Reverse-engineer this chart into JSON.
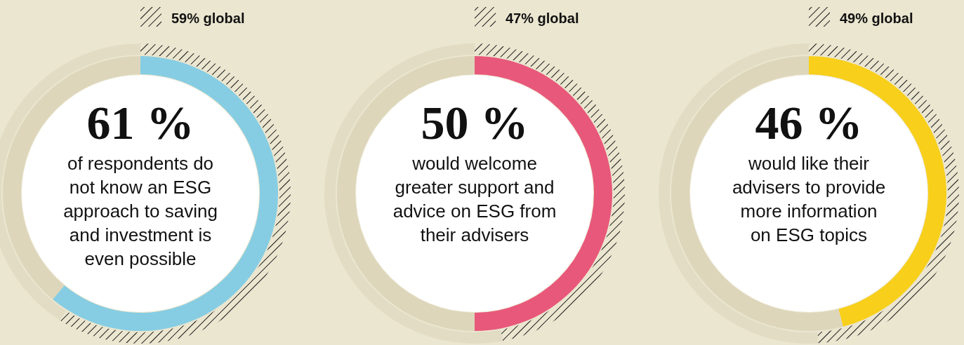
{
  "chart_data": [
    {
      "type": "donut",
      "subtitle": "of respondents do\nnot know an ESG\napproach to saving\nand investment is\neven possible",
      "series": [
        {
          "values": [
            61,
            39
          ],
          "colors": [
            "#86cde3",
            "#ddd6bb"
          ],
          "value_labels": [
            "61 %",
            null
          ]
        },
        {
          "values": [
            59,
            41
          ],
          "colors": [
            "#1a1a1a",
            "#e2dcc4"
          ],
          "value_labels": [
            "59% global",
            null
          ]
        }
      ]
    },
    {
      "type": "donut",
      "subtitle": "would welcome\ngreater support and\nadvice on ESG from\ntheir advisers",
      "series": [
        {
          "values": [
            50,
            50
          ],
          "colors": [
            "#e8587a",
            "#ddd6bb"
          ],
          "value_labels": [
            "50 %",
            null
          ]
        },
        {
          "values": [
            47,
            53
          ],
          "colors": [
            "#1a1a1a",
            "#e2dcc4"
          ],
          "value_labels": [
            "47% global",
            null
          ]
        }
      ]
    },
    {
      "type": "donut",
      "subtitle": "would like their\nadvisers to provide\nmore information\non ESG topics",
      "series": [
        {
          "values": [
            46,
            54
          ],
          "colors": [
            "#f8cf1a",
            "#ddd6bb"
          ],
          "value_labels": [
            "46 %",
            null
          ]
        },
        {
          "values": [
            49,
            51
          ],
          "colors": [
            "#1a1a1a",
            "#e2dcc4"
          ],
          "value_labels": [
            "49% global",
            null
          ]
        }
      ]
    }
  ]
}
